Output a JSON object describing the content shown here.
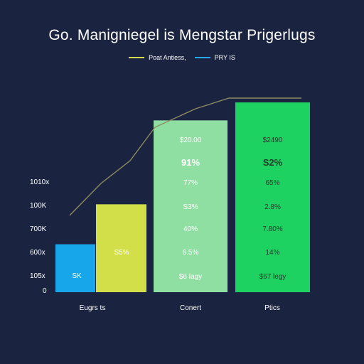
{
  "chart_data": {
    "type": "bar",
    "title": "Go. Manigniegel is Mengstar Prigerlugs",
    "legend": [
      {
        "label": "Poat Antiess,",
        "color": "#d6dd4c"
      },
      {
        "label": "PRY IS",
        "color": "#25aaf0"
      }
    ],
    "yticks": [
      "0",
      "105x",
      "600x",
      "700K",
      "100K",
      "1010x"
    ],
    "categories": [
      "Eugrs ts",
      "Conert",
      "Ptics"
    ],
    "bars": [
      {
        "category_index": 0,
        "color": "#17a6ea",
        "height_frac": 0.24,
        "labels": [
          "SK"
        ]
      },
      {
        "category_index": 0,
        "color": "#d3df48",
        "height_frac": 0.44,
        "labels": [
          "S5%"
        ]
      },
      {
        "category_index": 1,
        "color": "#8fdfa2",
        "height_frac": 0.86,
        "labels": [
          "$20.00",
          "91%",
          "77%",
          "S3%",
          "40%",
          "6.5%",
          "$6 lagy"
        ]
      },
      {
        "category_index": 2,
        "color": "#1ed262",
        "height_frac": 0.95,
        "labels": [
          "$2490",
          "S2%",
          "65%",
          "2.8%",
          "7.80%",
          "14%",
          "$67 legy"
        ]
      }
    ],
    "trend_line": {
      "color": "#8d8a62",
      "points": [
        [
          0.075,
          0.4
        ],
        [
          0.24,
          0.57
        ],
        [
          0.38,
          0.69
        ],
        [
          0.58,
          0.9
        ],
        [
          0.86,
          0.98
        ],
        [
          1.0,
          0.98
        ]
      ]
    }
  }
}
